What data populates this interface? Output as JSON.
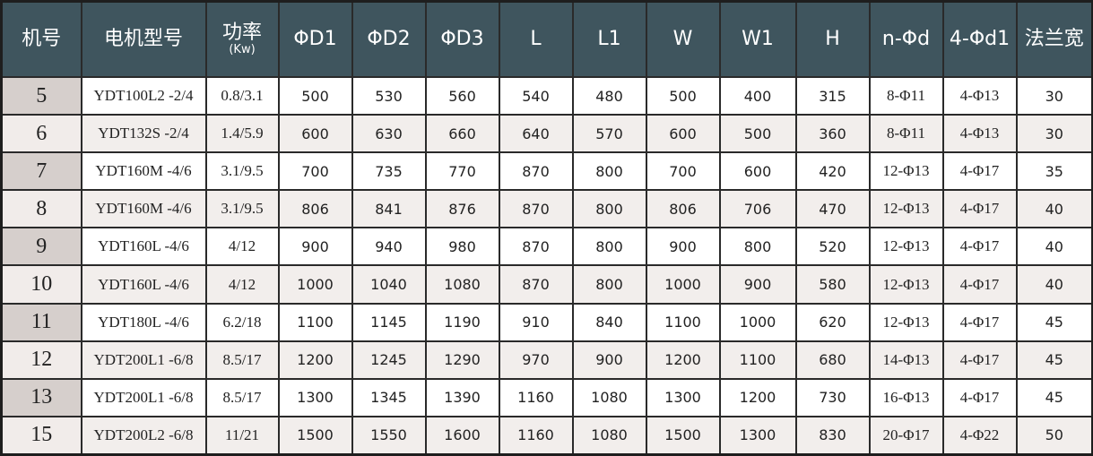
{
  "headers": [
    {
      "label": "机号"
    },
    {
      "label": "电机型号"
    },
    {
      "label": "功率",
      "sub": "(Kw)"
    },
    {
      "label": "ΦD1"
    },
    {
      "label": "ΦD2"
    },
    {
      "label": "ΦD3"
    },
    {
      "label": "L"
    },
    {
      "label": "L1"
    },
    {
      "label": "W"
    },
    {
      "label": "W1"
    },
    {
      "label": "H"
    },
    {
      "label": "n-Φd"
    },
    {
      "label": "4-Φd1"
    },
    {
      "label": "法兰宽"
    }
  ],
  "rows": [
    [
      "5",
      "YDT100L2 -2/4",
      "0.8/3.1",
      "500",
      "530",
      "560",
      "540",
      "480",
      "500",
      "400",
      "315",
      "8-Φ11",
      "4-Φ13",
      "30"
    ],
    [
      "6",
      "YDT132S -2/4",
      "1.4/5.9",
      "600",
      "630",
      "660",
      "640",
      "570",
      "600",
      "500",
      "360",
      "8-Φ11",
      "4-Φ13",
      "30"
    ],
    [
      "7",
      "YDT160M -4/6",
      "3.1/9.5",
      "700",
      "735",
      "770",
      "870",
      "800",
      "700",
      "600",
      "420",
      "12-Φ13",
      "4-Φ17",
      "35"
    ],
    [
      "8",
      "YDT160M -4/6",
      "3.1/9.5",
      "806",
      "841",
      "876",
      "870",
      "800",
      "806",
      "706",
      "470",
      "12-Φ13",
      "4-Φ17",
      "40"
    ],
    [
      "9",
      "YDT160L -4/6",
      "4/12",
      "900",
      "940",
      "980",
      "870",
      "800",
      "900",
      "800",
      "520",
      "12-Φ13",
      "4-Φ17",
      "40"
    ],
    [
      "10",
      "YDT160L -4/6",
      "4/12",
      "1000",
      "1040",
      "1080",
      "870",
      "800",
      "1000",
      "900",
      "580",
      "12-Φ13",
      "4-Φ17",
      "40"
    ],
    [
      "11",
      "YDT180L -4/6",
      "6.2/18",
      "1100",
      "1145",
      "1190",
      "910",
      "840",
      "1100",
      "1000",
      "620",
      "12-Φ13",
      "4-Φ17",
      "45"
    ],
    [
      "12",
      "YDT200L1 -6/8",
      "8.5/17",
      "1200",
      "1245",
      "1290",
      "970",
      "900",
      "1200",
      "1100",
      "680",
      "14-Φ13",
      "4-Φ17",
      "45"
    ],
    [
      "13",
      "YDT200L1 -6/8",
      "8.5/17",
      "1300",
      "1345",
      "1390",
      "1160",
      "1080",
      "1300",
      "1200",
      "730",
      "16-Φ13",
      "4-Φ17",
      "45"
    ],
    [
      "15",
      "YDT200L2 -6/8",
      "11/21",
      "1500",
      "1550",
      "1600",
      "1160",
      "1080",
      "1500",
      "1300",
      "830",
      "20-Φ17",
      "4-Φ22",
      "50"
    ]
  ],
  "colors": {
    "header_bg": "#3f555e",
    "row_alt": "#f2eeec",
    "id_col": "#d6cfcc"
  }
}
